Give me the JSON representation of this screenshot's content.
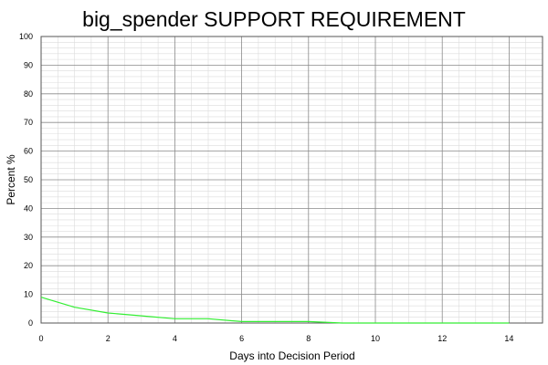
{
  "chart_data": {
    "type": "line",
    "title": "big_spender SUPPORT REQUIREMENT",
    "xlabel": "Days into Decision Period",
    "ylabel": "Percent %",
    "xlim": [
      0,
      15
    ],
    "ylim": [
      0,
      100
    ],
    "x_ticks": [
      0,
      2,
      4,
      6,
      8,
      10,
      12,
      14
    ],
    "y_ticks": [
      0,
      10,
      20,
      30,
      40,
      50,
      60,
      70,
      80,
      90,
      100
    ],
    "grid": true,
    "series": [
      {
        "color": "#33ee33",
        "x": [
          0,
          1,
          2,
          3,
          4,
          5,
          6,
          7,
          8,
          9,
          10,
          11,
          12,
          13,
          14
        ],
        "y": [
          9,
          5.5,
          3.5,
          2.5,
          1.5,
          1.5,
          0.5,
          0.5,
          0.5,
          0,
          0,
          0,
          0,
          0,
          0
        ]
      }
    ]
  }
}
